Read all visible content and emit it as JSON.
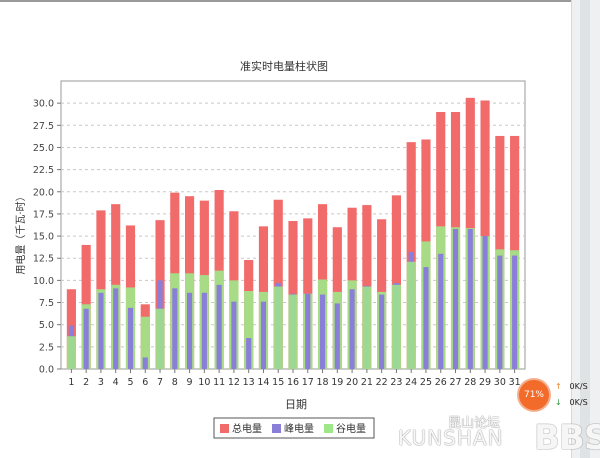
{
  "chart_data": {
    "type": "bar",
    "title": "准实时电量柱状图",
    "xlabel": "日期",
    "ylabel": "用电量（千瓦·时）",
    "ylim": [
      0,
      32.5
    ],
    "yticks": [
      "0.0",
      "2.5",
      "5.0",
      "7.5",
      "10.0",
      "12.5",
      "15.0",
      "17.5",
      "20.0",
      "22.5",
      "25.0",
      "27.5",
      "30.0"
    ],
    "categories": [
      "1",
      "2",
      "3",
      "4",
      "5",
      "6",
      "7",
      "8",
      "9",
      "10",
      "11",
      "12",
      "13",
      "14",
      "15",
      "16",
      "17",
      "18",
      "19",
      "20",
      "21",
      "22",
      "23",
      "24",
      "25",
      "26",
      "27",
      "28",
      "29",
      "30",
      "31"
    ],
    "series": [
      {
        "name": "总电量",
        "color": "#f26b6b",
        "values": [
          9.0,
          14.0,
          17.9,
          18.6,
          16.2,
          7.3,
          16.8,
          19.9,
          19.5,
          19.0,
          20.2,
          17.8,
          12.3,
          16.1,
          19.1,
          16.7,
          17.0,
          18.6,
          16.0,
          18.2,
          18.5,
          16.9,
          19.6,
          25.6,
          25.9,
          29.0,
          29.0,
          30.6,
          30.3,
          26.3,
          26.3
        ]
      },
      {
        "name": "峰电量",
        "color": "#8a7fd8",
        "values": [
          4.9,
          6.8,
          8.6,
          9.1,
          6.9,
          1.3,
          10.0,
          9.1,
          8.6,
          8.6,
          9.5,
          7.6,
          3.5,
          7.6,
          9.7,
          8.5,
          8.5,
          8.4,
          7.4,
          9.0,
          9.4,
          8.4,
          9.7,
          13.2,
          11.5,
          13.0,
          15.8,
          15.8,
          15.0,
          12.8,
          12.8
        ]
      },
      {
        "name": "谷电量",
        "color": "#9ee88a",
        "values": [
          3.7,
          7.3,
          9.0,
          9.5,
          9.2,
          5.9,
          6.8,
          10.8,
          10.8,
          10.6,
          11.1,
          10.0,
          8.8,
          8.7,
          9.3,
          8.4,
          8.5,
          10.1,
          8.7,
          10.0,
          9.3,
          8.7,
          9.5,
          12.1,
          14.4,
          16.1,
          16.0,
          15.9,
          15.0,
          13.5,
          13.4
        ]
      }
    ],
    "grid": true,
    "legend": "bottom-center"
  },
  "overlay": {
    "speed_percent": "71%",
    "upload": "0K/S",
    "download": "0K/S",
    "watermark_cn": "昆山论坛",
    "watermark_kunshan": "KUNSHAN",
    "watermark_bbs": "BBS",
    "ring_color": "#f36b2b"
  }
}
